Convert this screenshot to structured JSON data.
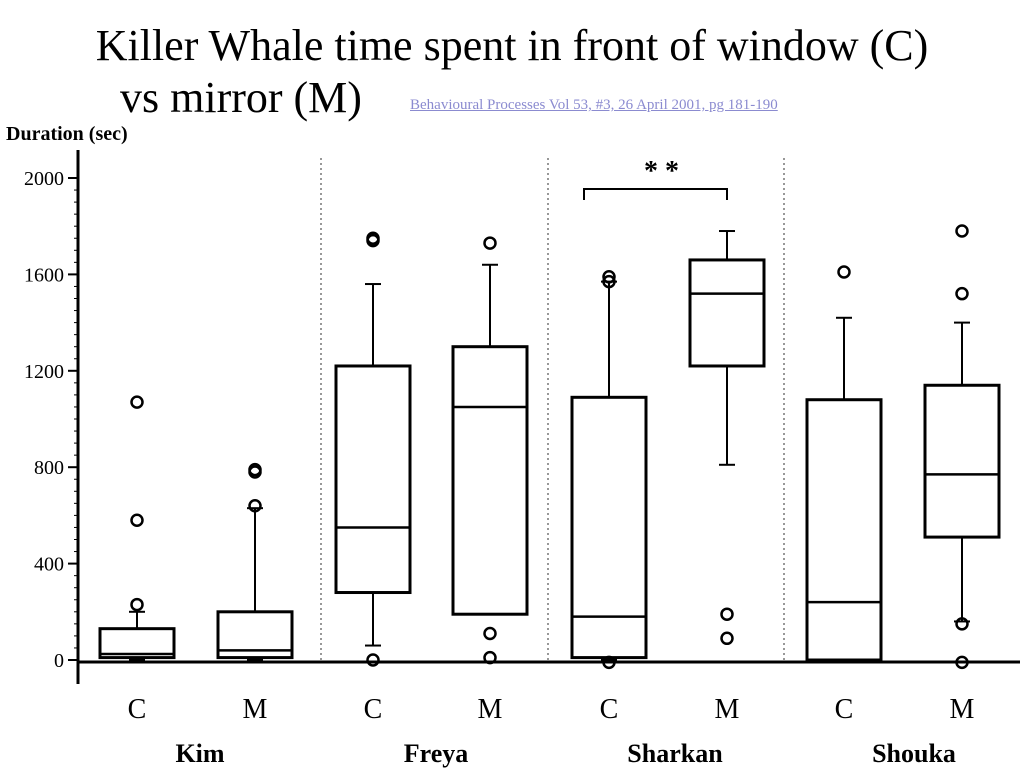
{
  "title_line1": "Killer Whale time spent in front of window (C)",
  "title_line2": "vs mirror (M)",
  "citation": "Behavioural Processes  Vol 53, #3, 26 April 2001, pg 181-190",
  "chart_data": {
    "type": "box",
    "ylabel": "Duration (sec)",
    "ylim": [
      0,
      2000
    ],
    "yticks": [
      0,
      400,
      800,
      1200,
      1600,
      2000
    ],
    "yticklabels": [
      "0",
      "400",
      "800",
      "1200",
      "1600",
      "2000"
    ],
    "grid": false,
    "groups": [
      {
        "name": "Kim",
        "boxes": [
          {
            "cat": "C",
            "min": 0,
            "q1": 10,
            "median": 25,
            "q3": 130,
            "max": 200,
            "outliers": [
              230,
              580,
              1070
            ]
          },
          {
            "cat": "M",
            "min": 0,
            "q1": 10,
            "median": 40,
            "q3": 200,
            "max": 630,
            "outliers": [
              640,
              780,
              790
            ]
          }
        ]
      },
      {
        "name": "Freya",
        "boxes": [
          {
            "cat": "C",
            "min": 60,
            "q1": 280,
            "median": 550,
            "q3": 1220,
            "max": 1560,
            "outliers": [
              0,
              1740,
              1750
            ]
          },
          {
            "cat": "M",
            "min": 190,
            "q1": 190,
            "median": 1050,
            "q3": 1300,
            "max": 1640,
            "outliers": [
              10,
              110,
              1730
            ]
          }
        ]
      },
      {
        "name": "Sharkan",
        "boxes": [
          {
            "cat": "C",
            "min": 0,
            "q1": 10,
            "median": 180,
            "q3": 1090,
            "max": 1570,
            "outliers": [
              -10,
              1570,
              1590
            ]
          },
          {
            "cat": "M",
            "min": 810,
            "q1": 1220,
            "median": 1520,
            "q3": 1660,
            "max": 1780,
            "outliers": [
              90,
              190
            ]
          }
        ]
      },
      {
        "name": "Shouka",
        "boxes": [
          {
            "cat": "C",
            "min": 0,
            "q1": 0,
            "median": 240,
            "q3": 1080,
            "max": 1420,
            "outliers": [
              1610
            ]
          },
          {
            "cat": "M",
            "min": 160,
            "q1": 510,
            "median": 770,
            "q3": 1140,
            "max": 1400,
            "outliers": [
              -10,
              150,
              1520,
              1780
            ]
          }
        ]
      }
    ],
    "significance": {
      "group": "Sharkan",
      "label": "* *"
    }
  }
}
